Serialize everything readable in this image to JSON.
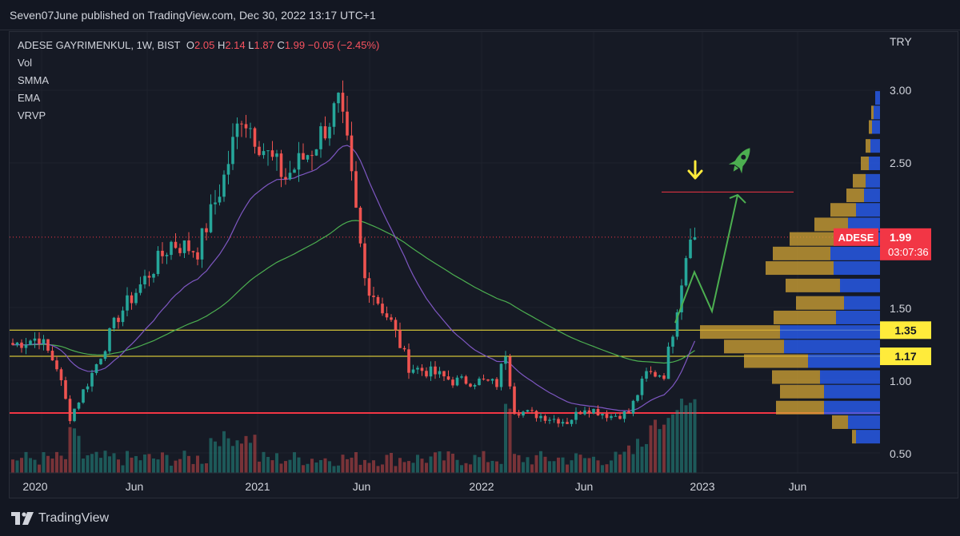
{
  "header": {
    "publisher": "Seven07June published on TradingView.com, Dec 30, 2022 13:17 UTC+1"
  },
  "legend": {
    "symbol": "ADESE GAYRIMENKUL, 1W, BIST",
    "open_label": "O",
    "open": "2.05",
    "high_label": "H",
    "high": "2.14",
    "low_label": "L",
    "low": "1.87",
    "close_label": "C",
    "close": "1.99",
    "change": "−0.05 (−2.45%)",
    "indicators": [
      "Vol",
      "SMMA",
      "EMA",
      "VRVP"
    ]
  },
  "footer": {
    "brand": "TradingView"
  },
  "colors": {
    "up": "#26a69a",
    "down": "#ef5350",
    "background": "#161a25",
    "smma": "#4caf50",
    "ema": "#7e57c2",
    "support_yellow": "#ffeb3b",
    "support_red": "#f23645",
    "vrvp_up": "#2962ff",
    "vrvp_down": "#d4a534",
    "arrow": "#4caf50",
    "marker": "#ffeb3b"
  },
  "icons": [
    "down-arrow-icon",
    "rocket-icon",
    "tradingview-logo-icon"
  ],
  "chart_data": {
    "type": "candlestick",
    "currency": "TRY",
    "timeframe": "1W",
    "x_ticks": [
      "2020",
      "Jun",
      "2021",
      "Jun",
      "2022",
      "Jun",
      "2023",
      "Jun"
    ],
    "y_ticks": [
      "3.00",
      "2.50",
      "1.50",
      "1.00",
      "0.50"
    ],
    "ylim": [
      0.45,
      3.12
    ],
    "y_scale": "linear",
    "last_price": {
      "symbol": "ADESE",
      "value": "1.99",
      "countdown": "03:07:36"
    },
    "horizontal_levels": [
      {
        "value": 1.35,
        "label": "1.35",
        "color": "#ffeb3b"
      },
      {
        "value": 1.17,
        "label": "1.17",
        "color": "#ffeb3b"
      },
      {
        "value": 0.78,
        "label": "",
        "color": "#f23645"
      },
      {
        "value": 2.3,
        "label": "",
        "color": "#f23645"
      }
    ],
    "candles_summary": [
      {
        "period": "2020-01",
        "close": 1.25
      },
      {
        "period": "2020-03",
        "close": 0.75
      },
      {
        "period": "2020-06",
        "close": 1.55
      },
      {
        "period": "2020-09",
        "close": 1.95
      },
      {
        "period": "2020-11",
        "close": 2.85
      },
      {
        "period": "2021-01",
        "close": 2.55
      },
      {
        "period": "2021-03",
        "close": 2.9
      },
      {
        "period": "2021-05",
        "close": 1.7
      },
      {
        "period": "2021-08",
        "close": 1.1
      },
      {
        "period": "2021-11",
        "close": 1.0
      },
      {
        "period": "2022-01",
        "close": 0.8
      },
      {
        "period": "2022-06",
        "close": 0.77
      },
      {
        "period": "2022-09",
        "close": 1.05
      },
      {
        "period": "2022-11",
        "close": 1.7
      },
      {
        "period": "2022-12",
        "close": 1.99
      }
    ],
    "projection": "zigzag up from 1.65 toward 2.30 resistance"
  }
}
